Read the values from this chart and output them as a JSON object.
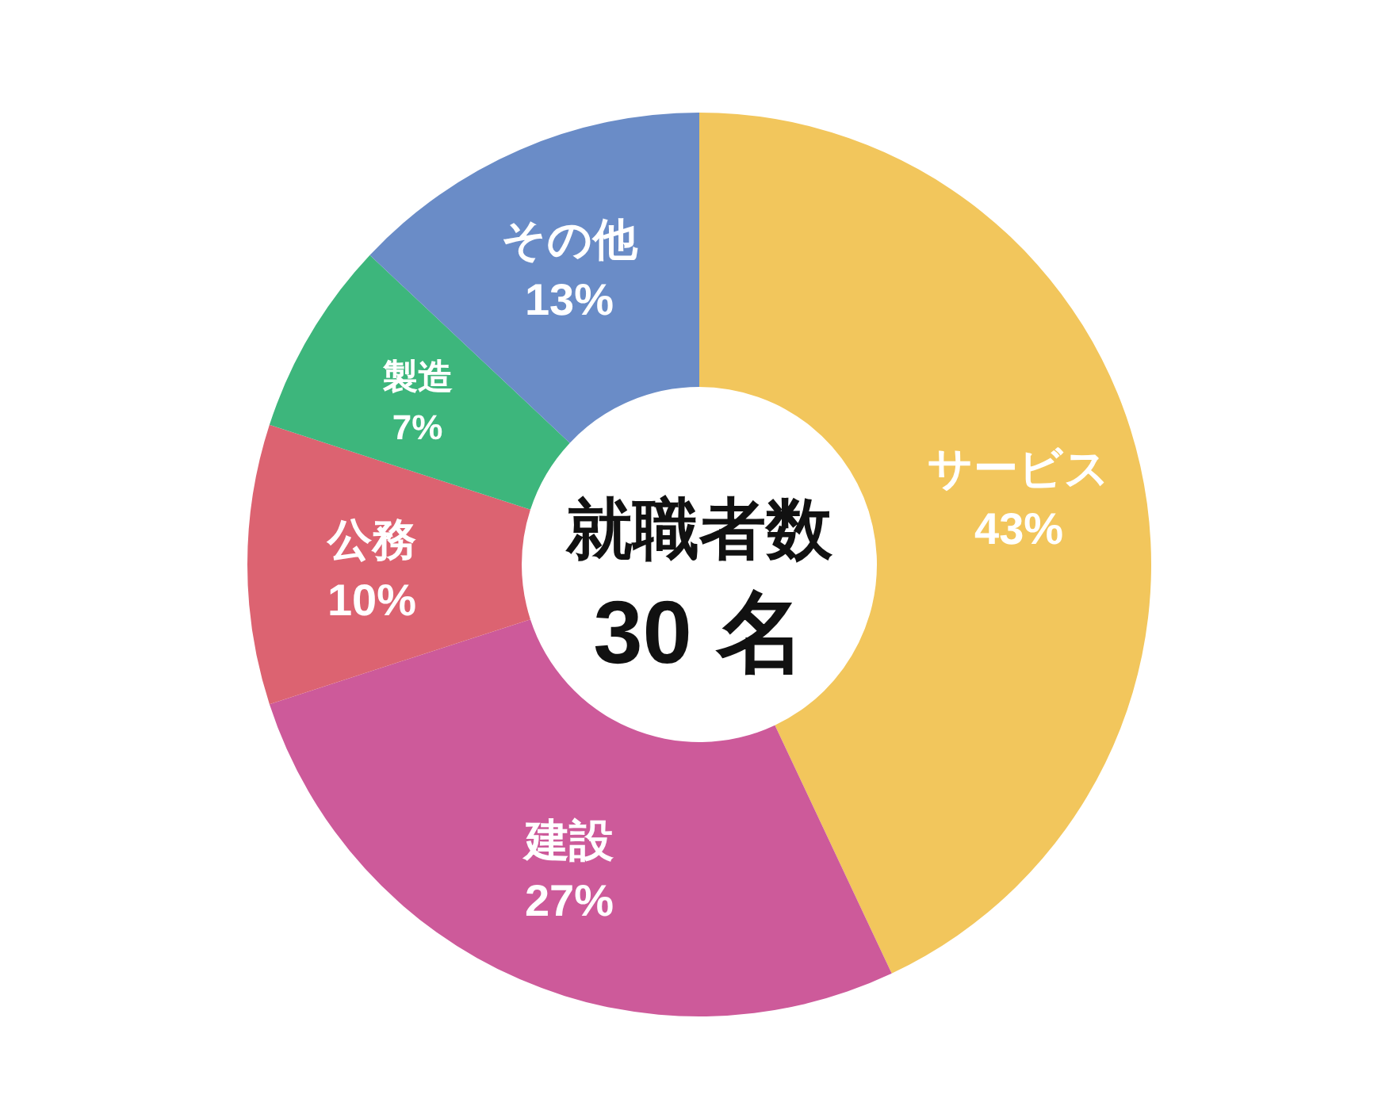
{
  "chart_data": {
    "type": "donut",
    "title": "就職者数",
    "subtitle": "30 名",
    "categories": [
      "サービス",
      "建設",
      "公務",
      "製造",
      "その他"
    ],
    "values": [
      43,
      27,
      10,
      7,
      13
    ],
    "colors": [
      "#f2c65c",
      "#cd5a9a",
      "#dc6371",
      "#3db67c",
      "#6a8cc7"
    ],
    "value_labels": [
      "43%",
      "27%",
      "10%",
      "7%",
      "13%"
    ]
  }
}
